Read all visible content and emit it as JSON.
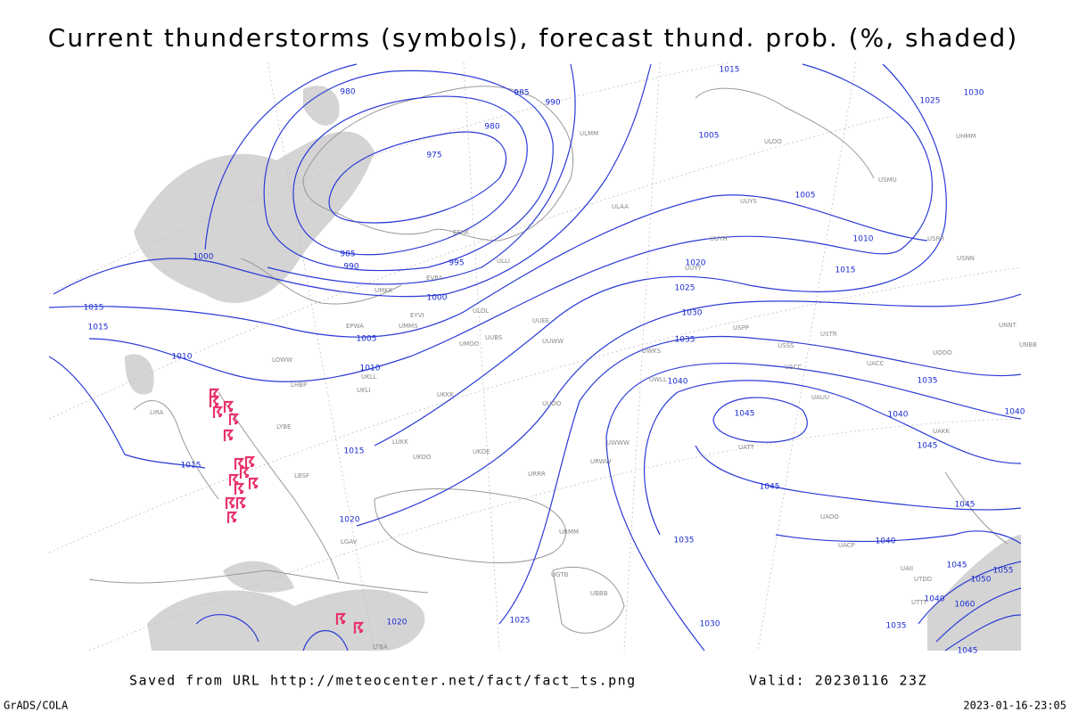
{
  "header": {
    "title": "Current thunderstorms (symbols), forecast thund. prob. (%, shaded)"
  },
  "footer": {
    "source": "Saved from URL http://meteocenter.net/fact/fact_ts.png",
    "valid": "Valid: 20230116 23Z",
    "software": "GrADS/COLA",
    "timestamp": "2023-01-16-23:05"
  },
  "isobar_labels": [
    980,
    985,
    990,
    980,
    975,
    1015,
    1005,
    1025,
    1030,
    1005,
    1010,
    1015,
    985,
    990,
    995,
    1000,
    1000,
    1020,
    1025,
    1030,
    1035,
    1040,
    1045,
    1040,
    1045,
    1035,
    1045,
    1045,
    1040,
    1035,
    1030,
    1015,
    1015,
    1005,
    1010,
    1010,
    1015,
    1015,
    1020,
    1025,
    1020,
    1035,
    1040,
    1045,
    1050,
    1055,
    1060,
    1045,
    1040
  ],
  "stations": [
    "ULMM",
    "ULAA",
    "UUYS",
    "ULOO",
    "UUYY",
    "UUYH",
    "EFHK",
    "ULLI",
    "EVRA",
    "ULOL",
    "UMKK",
    "UMMS",
    "EYVI",
    "EPWA",
    "UUEE",
    "UUWW",
    "UMOO",
    "UUBS",
    "UKKK",
    "UKLL",
    "UKLI",
    "LHBP",
    "LOWW",
    "LIRA",
    "LYBE",
    "LUKK",
    "UKOO",
    "UKDE",
    "URRR",
    "UUOO",
    "URWW",
    "UWWW",
    "UWKS",
    "UWLL",
    "USSS",
    "USCC",
    "USPP",
    "USTR",
    "UACC",
    "UATT",
    "UAUU",
    "UAKK",
    "UAOO",
    "URMM",
    "UGTB",
    "UBBB",
    "LBSF",
    "LGAV",
    "LTBA",
    "UACP",
    "UNBB",
    "UNNT",
    "USNN",
    "USRR",
    "USMU",
    "UOOO",
    "UHMM",
    "UTTT",
    "UAII",
    "UTDD"
  ]
}
